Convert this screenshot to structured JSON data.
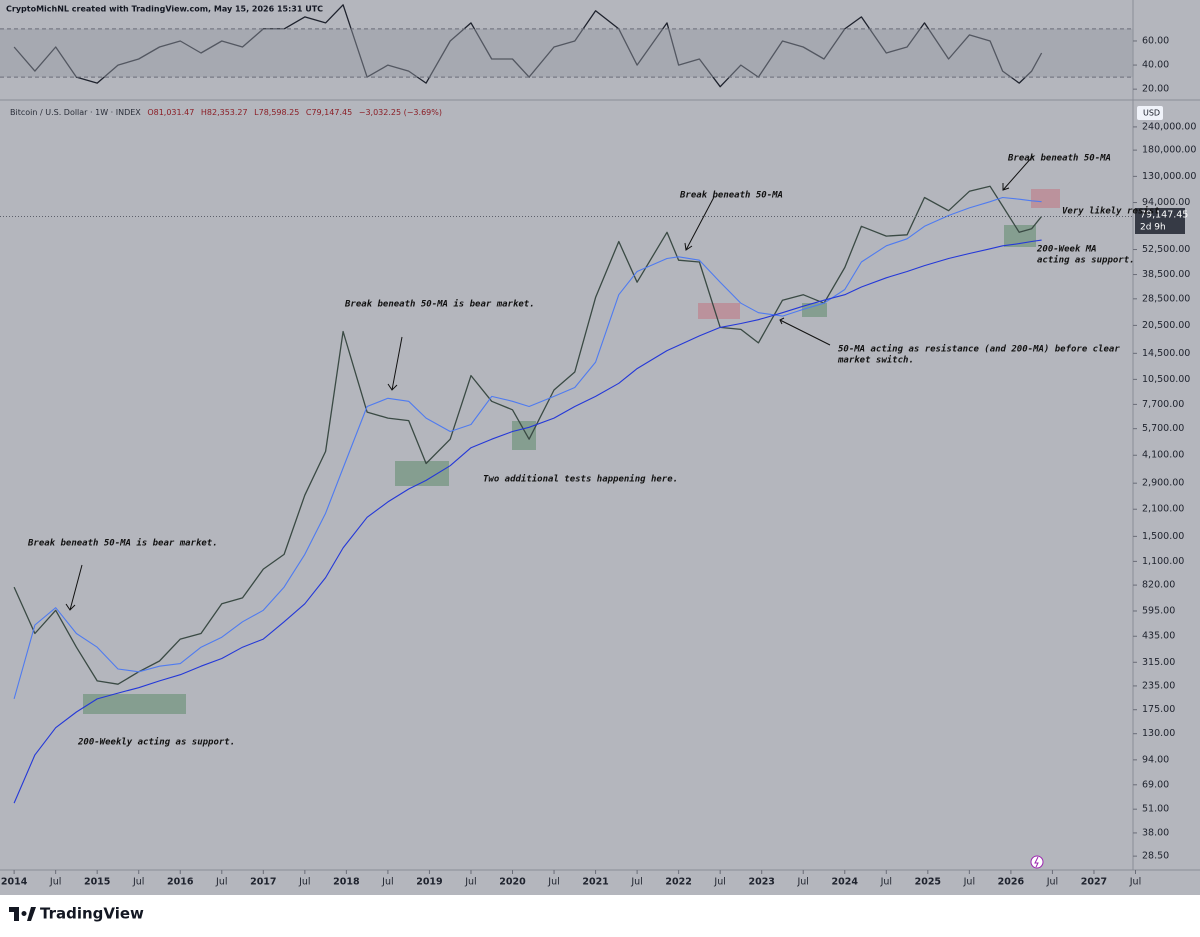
{
  "header": {
    "credit": "CryptoMichNL created with TradingView.com, May 15, 2026 15:31 UTC"
  },
  "legend_text": {
    "symbol": "Bitcoin / U.S. Dollar · 1W · INDEX",
    "open": "O81,031.47",
    "high": "H82,353.27",
    "low": "L78,598.25",
    "close": "C79,147.45",
    "change": "−3,032.25 (−3.69%)"
  },
  "currency": "USD",
  "last_price": {
    "price": "79,147.45",
    "countdown": "2d 9h"
  },
  "annotations": [
    "Break beneath 50-MA is bear market.",
    "200-Weekly acting as support.",
    "Break beneath 50-MA is bear market.",
    "Two additional tests happening here.",
    "Break beneath 50-MA",
    "50-MA acting as resistance (and 200-MA) before clear",
    "market switch.",
    "Break beneath 50-MA",
    "Very likely resist",
    "200-Week MA",
    "acting as support."
  ],
  "footer": {
    "brand": "TradingView"
  },
  "chart_data": [
    {
      "type": "line",
      "log": false,
      "grid": false,
      "xlim": [
        2013.83,
        2027.47
      ],
      "ylim": [
        11,
        94
      ],
      "yticks": [
        {
          "value": 20,
          "label": "20.00"
        },
        {
          "value": 40,
          "label": "40.00"
        },
        {
          "value": 60,
          "label": "60.00"
        }
      ],
      "band": [
        30,
        70
      ],
      "x": [
        2014.0,
        2014.25,
        2014.5,
        2014.75,
        2015.0,
        2015.25,
        2015.5,
        2015.75,
        2016.0,
        2016.25,
        2016.5,
        2016.75,
        2017.0,
        2017.25,
        2017.5,
        2017.75,
        2017.96,
        2018.25,
        2018.5,
        2018.75,
        2018.96,
        2019.25,
        2019.5,
        2019.75,
        2020.0,
        2020.2,
        2020.5,
        2020.75,
        2021.0,
        2021.28,
        2021.5,
        2021.86,
        2022.0,
        2022.25,
        2022.5,
        2022.75,
        2022.96,
        2023.25,
        2023.5,
        2023.75,
        2024.0,
        2024.2,
        2024.5,
        2024.75,
        2024.96,
        2025.25,
        2025.5,
        2025.75,
        2025.9,
        2026.1,
        2026.25,
        2026.37
      ],
      "series": [
        {
          "color": "#1e222d",
          "values": [
            55,
            35,
            55,
            30,
            25,
            40,
            45,
            55,
            60,
            50,
            60,
            55,
            70,
            70,
            80,
            75,
            90,
            30,
            40,
            35,
            25,
            60,
            75,
            45,
            45,
            30,
            55,
            60,
            85,
            70,
            40,
            75,
            40,
            45,
            22,
            40,
            30,
            60,
            55,
            45,
            70,
            80,
            50,
            55,
            75,
            45,
            65,
            60,
            35,
            25,
            35,
            50
          ]
        }
      ]
    },
    {
      "type": "line",
      "log": true,
      "grid": false,
      "xlim": [
        2013.83,
        2027.47
      ],
      "ylim": [
        24,
        335000
      ],
      "xticks": [
        {
          "value": 2014,
          "label": "2014"
        },
        {
          "value": 2014.5,
          "label": "Jul"
        },
        {
          "value": 2015,
          "label": "2015"
        },
        {
          "value": 2015.5,
          "label": "Jul"
        },
        {
          "value": 2016,
          "label": "2016"
        },
        {
          "value": 2016.5,
          "label": "Jul"
        },
        {
          "value": 2017,
          "label": "2017"
        },
        {
          "value": 2017.5,
          "label": "Jul"
        },
        {
          "value": 2018,
          "label": "2018"
        },
        {
          "value": 2018.5,
          "label": "Jul"
        },
        {
          "value": 2019,
          "label": "2019"
        },
        {
          "value": 2019.5,
          "label": "Jul"
        },
        {
          "value": 2020,
          "label": "2020"
        },
        {
          "value": 2020.5,
          "label": "Jul"
        },
        {
          "value": 2021,
          "label": "2021"
        },
        {
          "value": 2021.5,
          "label": "Jul"
        },
        {
          "value": 2022,
          "label": "2022"
        },
        {
          "value": 2022.5,
          "label": "Jul"
        },
        {
          "value": 2023,
          "label": "2023"
        },
        {
          "value": 2023.5,
          "label": "Jul"
        },
        {
          "value": 2024,
          "label": "2024"
        },
        {
          "value": 2024.5,
          "label": "Jul"
        },
        {
          "value": 2025,
          "label": "2025"
        },
        {
          "value": 2025.5,
          "label": "Jul"
        },
        {
          "value": 2026,
          "label": "2026"
        },
        {
          "value": 2026.5,
          "label": "Jul"
        },
        {
          "value": 2027,
          "label": "2027"
        },
        {
          "value": 2027.5,
          "label": "Jul"
        }
      ],
      "yticks": [
        {
          "value": 28.5,
          "label": "28.50"
        },
        {
          "value": 38,
          "label": "38.00"
        },
        {
          "value": 51,
          "label": "51.00"
        },
        {
          "value": 69,
          "label": "69.00"
        },
        {
          "value": 94,
          "label": "94.00"
        },
        {
          "value": 130,
          "label": "130.00"
        },
        {
          "value": 175,
          "label": "175.00"
        },
        {
          "value": 235,
          "label": "235.00"
        },
        {
          "value": 315,
          "label": "315.00"
        },
        {
          "value": 435,
          "label": "435.00"
        },
        {
          "value": 595,
          "label": "595.00"
        },
        {
          "value": 820,
          "label": "820.00"
        },
        {
          "value": 1100,
          "label": "1,100.00"
        },
        {
          "value": 1500,
          "label": "1,500.00"
        },
        {
          "value": 2100,
          "label": "2,100.00"
        },
        {
          "value": 2900,
          "label": "2,900.00"
        },
        {
          "value": 4100,
          "label": "4,100.00"
        },
        {
          "value": 5700,
          "label": "5,700.00"
        },
        {
          "value": 7700,
          "label": "7,700.00"
        },
        {
          "value": 10500,
          "label": "10,500.00"
        },
        {
          "value": 14500,
          "label": "14,500.00"
        },
        {
          "value": 20500,
          "label": "20,500.00"
        },
        {
          "value": 28500,
          "label": "28,500.00"
        },
        {
          "value": 38500,
          "label": "38,500.00"
        },
        {
          "value": 52500,
          "label": "52,500.00"
        },
        {
          "value": 94000,
          "label": "94,000.00"
        },
        {
          "value": 130000,
          "label": "130,000.00"
        },
        {
          "value": 180000,
          "label": "180,000.00"
        },
        {
          "value": 240000,
          "label": "240,000.00"
        }
      ],
      "x": [
        2014.0,
        2014.25,
        2014.5,
        2014.75,
        2015.0,
        2015.25,
        2015.5,
        2015.75,
        2016.0,
        2016.25,
        2016.5,
        2016.75,
        2017.0,
        2017.25,
        2017.5,
        2017.75,
        2017.96,
        2018.25,
        2018.5,
        2018.75,
        2018.96,
        2019.25,
        2019.5,
        2019.75,
        2020.0,
        2020.2,
        2020.5,
        2020.75,
        2021.0,
        2021.28,
        2021.5,
        2021.86,
        2022.0,
        2022.25,
        2022.5,
        2022.75,
        2022.96,
        2023.25,
        2023.5,
        2023.75,
        2024.0,
        2024.2,
        2024.5,
        2024.75,
        2024.96,
        2025.25,
        2025.5,
        2025.75,
        2025.9,
        2026.1,
        2026.25,
        2026.37
      ],
      "series": [
        {
          "color": "#3a4a44",
          "values": [
            800,
            450,
            600,
            380,
            250,
            240,
            280,
            320,
            420,
            450,
            650,
            700,
            1000,
            1200,
            2500,
            4300,
            19000,
            7000,
            6500,
            6300,
            3700,
            5000,
            11000,
            8000,
            7200,
            5000,
            9200,
            11500,
            29000,
            58000,
            35000,
            65000,
            46000,
            45000,
            20000,
            19500,
            16500,
            28000,
            30000,
            27000,
            42000,
            70000,
            62000,
            63000,
            100000,
            85000,
            108000,
            115000,
            90000,
            65000,
            68000,
            79147.45
          ]
        },
        {
          "color": "#4f7bf0",
          "values": [
            200,
            500,
            620,
            450,
            380,
            290,
            280,
            300,
            310,
            380,
            430,
            520,
            600,
            800,
            1200,
            2000,
            3500,
            7500,
            8300,
            8000,
            6500,
            5500,
            6000,
            8500,
            8000,
            7500,
            8500,
            9500,
            13000,
            30000,
            40000,
            47000,
            48000,
            46000,
            35000,
            27000,
            24000,
            23000,
            25000,
            27000,
            32000,
            45000,
            55000,
            60000,
            70000,
            80000,
            88000,
            95000,
            100000,
            98000,
            96000,
            95000
          ]
        },
        {
          "color": "#2438d8",
          "values": [
            55,
            100,
            140,
            170,
            200,
            215,
            230,
            250,
            270,
            300,
            330,
            380,
            420,
            520,
            650,
            900,
            1300,
            1900,
            2300,
            2700,
            3000,
            3600,
            4500,
            5000,
            5500,
            5800,
            6500,
            7500,
            8500,
            10000,
            12000,
            15000,
            16000,
            18000,
            20000,
            21000,
            22000,
            24000,
            26000,
            28000,
            30000,
            33000,
            37000,
            40000,
            43000,
            47000,
            50000,
            53000,
            55000,
            56500,
            58000,
            59000
          ]
        }
      ]
    }
  ]
}
